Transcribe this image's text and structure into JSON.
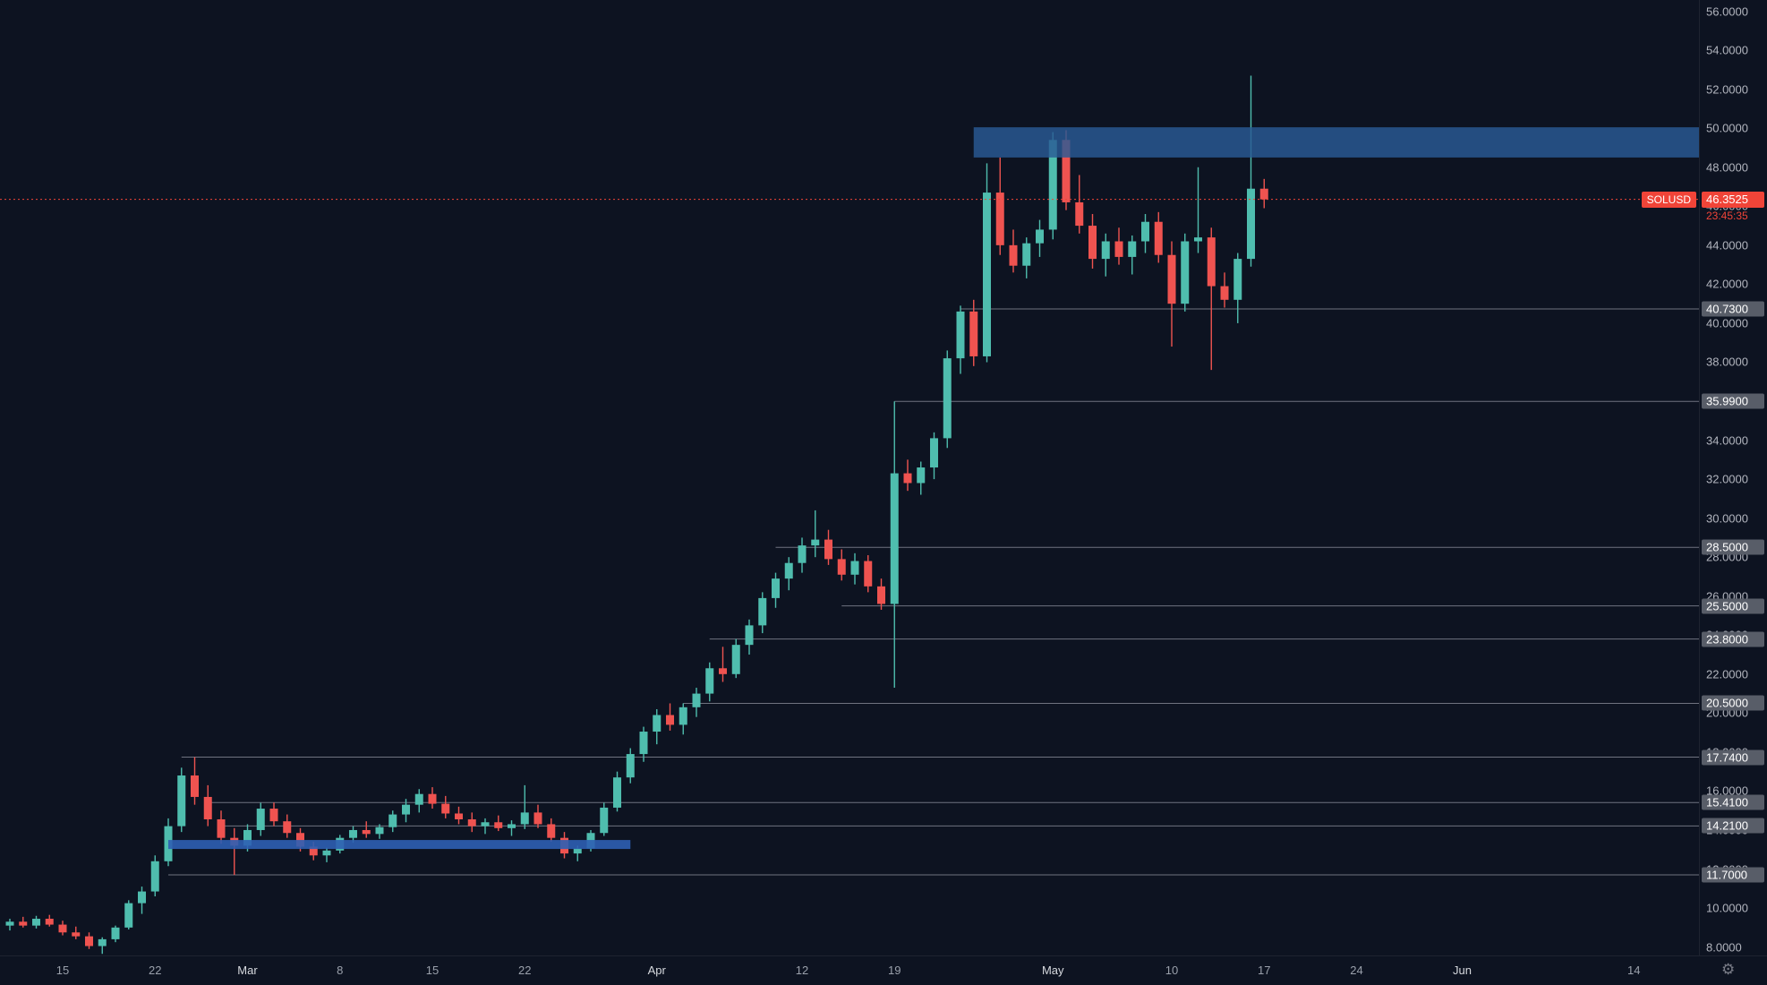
{
  "symbol": {
    "name": "SOLUSD",
    "last_price": "46.3525",
    "countdown": "23:45:35"
  },
  "colors": {
    "background": "#0d1321",
    "up": "#4fbdae",
    "down": "#ef5350",
    "level_line": "#6f7380",
    "zone_supply": "#2a5a95",
    "zone_support": "#2e5fb2",
    "accent_red": "#f04438",
    "axis_text": "#b2b5be",
    "badge_gray": "#585d68"
  },
  "chart_data": {
    "type": "candlestick",
    "symbol": "SOLUSD",
    "price_range": [
      8,
      56
    ],
    "current_price": 46.3525,
    "axis_ticks": [
      56,
      54,
      52,
      50,
      48,
      46,
      44,
      42,
      40,
      38,
      36,
      34,
      32,
      30,
      28,
      26,
      24,
      22,
      20,
      18,
      16,
      14,
      12,
      10,
      8
    ],
    "levels": [
      {
        "price": 40.73,
        "label": "40.7300",
        "from_day": 72
      },
      {
        "price": 35.99,
        "label": "35.9900",
        "from_day": 67
      },
      {
        "price": 28.5,
        "label": "28.5000",
        "from_day": 58
      },
      {
        "price": 25.5,
        "label": "25.5000",
        "from_day": 63
      },
      {
        "price": 23.8,
        "label": "23.8000",
        "from_day": 53
      },
      {
        "price": 20.5,
        "label": "20.5000",
        "from_day": 51
      },
      {
        "price": 17.74,
        "label": "17.7400",
        "from_day": 13
      },
      {
        "price": 15.41,
        "label": "15.4100",
        "from_day": 15
      },
      {
        "price": 14.21,
        "label": "14.2100",
        "from_day": 16
      },
      {
        "price": 11.7,
        "label": "11.7000",
        "from_day": 12
      }
    ],
    "zones": [
      {
        "name": "supply",
        "from_day": 73,
        "to_day": null,
        "price_top": 50.05,
        "price_bottom": 48.5
      },
      {
        "name": "support",
        "from_day": 12,
        "to_day": 47,
        "price_top": 13.49,
        "price_bottom": 13.03
      }
    ],
    "candles": [
      [
        "Feb 11",
        9.1,
        9.45,
        8.85,
        9.3
      ],
      [
        "Feb 12",
        9.3,
        9.55,
        9.0,
        9.1
      ],
      [
        "Feb 13",
        9.1,
        9.6,
        8.95,
        9.45
      ],
      [
        "Feb 14",
        9.45,
        9.65,
        9.05,
        9.15
      ],
      [
        "Feb 15",
        9.15,
        9.35,
        8.6,
        8.75
      ],
      [
        "Feb 16",
        8.75,
        9.05,
        8.4,
        8.55
      ],
      [
        "Feb 17",
        8.55,
        8.75,
        7.9,
        8.05
      ],
      [
        "Feb 18",
        8.05,
        8.5,
        7.65,
        8.4
      ],
      [
        "Feb 19",
        8.4,
        9.1,
        8.25,
        9.0
      ],
      [
        "Feb 20",
        9.0,
        10.4,
        8.9,
        10.25
      ],
      [
        "Feb 21",
        10.25,
        11.1,
        9.7,
        10.85
      ],
      [
        "Feb 22",
        10.85,
        12.7,
        10.6,
        12.4
      ],
      [
        "Feb 23",
        12.4,
        14.6,
        12.15,
        14.2
      ],
      [
        "Feb 24",
        14.2,
        17.2,
        13.9,
        16.8
      ],
      [
        "Feb 25",
        16.8,
        17.74,
        15.3,
        15.7
      ],
      [
        "Feb 26",
        15.7,
        16.3,
        14.2,
        14.55
      ],
      [
        "Feb 27",
        14.55,
        15.0,
        13.3,
        13.6
      ],
      [
        "Feb 28",
        13.6,
        14.1,
        11.7,
        13.2
      ],
      [
        "Mar 1",
        13.2,
        14.3,
        12.9,
        14.0
      ],
      [
        "Mar 2",
        14.0,
        15.4,
        13.7,
        15.1
      ],
      [
        "Mar 3",
        15.1,
        15.41,
        14.2,
        14.45
      ],
      [
        "Mar 4",
        14.45,
        14.8,
        13.6,
        13.85
      ],
      [
        "Mar 5",
        13.85,
        14.1,
        12.9,
        13.15
      ],
      [
        "Mar 6",
        13.15,
        13.4,
        12.45,
        12.7
      ],
      [
        "Mar 7",
        12.7,
        13.1,
        12.35,
        12.95
      ],
      [
        "Mar 8",
        12.95,
        13.75,
        12.8,
        13.6
      ],
      [
        "Mar 9",
        13.6,
        14.2,
        13.35,
        14.0
      ],
      [
        "Mar 10",
        14.0,
        14.45,
        13.6,
        13.8
      ],
      [
        "Mar 11",
        13.8,
        14.3,
        13.55,
        14.15
      ],
      [
        "Mar 12",
        14.15,
        15.0,
        13.9,
        14.8
      ],
      [
        "Mar 13",
        14.8,
        15.6,
        14.4,
        15.3
      ],
      [
        "Mar 14",
        15.3,
        16.1,
        14.9,
        15.85
      ],
      [
        "Mar 15",
        15.85,
        16.2,
        15.1,
        15.35
      ],
      [
        "Mar 16",
        15.35,
        15.75,
        14.6,
        14.85
      ],
      [
        "Mar 17",
        14.85,
        15.2,
        14.3,
        14.55
      ],
      [
        "Mar 18",
        14.55,
        14.9,
        13.9,
        14.2
      ],
      [
        "Mar 19",
        14.2,
        14.6,
        13.8,
        14.4
      ],
      [
        "Mar 20",
        14.4,
        14.75,
        13.95,
        14.1
      ],
      [
        "Mar 21",
        14.1,
        14.5,
        13.7,
        14.3
      ],
      [
        "Mar 22",
        14.3,
        16.3,
        14.05,
        14.9
      ],
      [
        "Mar 23",
        14.9,
        15.3,
        14.1,
        14.3
      ],
      [
        "Mar 24",
        14.3,
        14.6,
        13.4,
        13.6
      ],
      [
        "Mar 25",
        13.6,
        13.9,
        12.55,
        12.8
      ],
      [
        "Mar 26",
        12.8,
        13.2,
        12.4,
        13.05
      ],
      [
        "Mar 27",
        13.05,
        14.0,
        12.9,
        13.85
      ],
      [
        "Mar 28",
        13.85,
        15.4,
        13.7,
        15.15
      ],
      [
        "Mar 29",
        15.15,
        17.0,
        14.95,
        16.7
      ],
      [
        "Mar 30",
        16.7,
        18.2,
        16.4,
        17.9
      ],
      [
        "Mar 31",
        17.9,
        19.3,
        17.5,
        19.05
      ],
      [
        "Apr 1",
        19.05,
        20.2,
        18.4,
        19.9
      ],
      [
        "Apr 2",
        19.9,
        20.5,
        19.1,
        19.4
      ],
      [
        "Apr 3",
        19.4,
        20.5,
        18.9,
        20.3
      ],
      [
        "Apr 4",
        20.3,
        21.3,
        19.8,
        21.0
      ],
      [
        "Apr 5",
        21.0,
        22.6,
        20.6,
        22.3
      ],
      [
        "Apr 6",
        22.3,
        23.4,
        21.6,
        22.0
      ],
      [
        "Apr 7",
        22.0,
        23.8,
        21.8,
        23.5
      ],
      [
        "Apr 8",
        23.5,
        24.8,
        23.0,
        24.5
      ],
      [
        "Apr 9",
        24.5,
        26.2,
        24.1,
        25.9
      ],
      [
        "Apr 10",
        25.9,
        27.2,
        25.4,
        26.9
      ],
      [
        "Apr 11",
        26.9,
        28.0,
        26.3,
        27.7
      ],
      [
        "Apr 12",
        27.7,
        29.0,
        27.2,
        28.6
      ],
      [
        "Apr 13",
        28.6,
        30.4,
        28.0,
        28.9
      ],
      [
        "Apr 14",
        28.9,
        29.4,
        27.6,
        27.9
      ],
      [
        "Apr 15",
        27.9,
        28.4,
        26.8,
        27.1
      ],
      [
        "Apr 16",
        27.1,
        28.2,
        26.6,
        27.8
      ],
      [
        "Apr 17",
        27.8,
        28.1,
        26.2,
        26.5
      ],
      [
        "Apr 18",
        26.5,
        26.9,
        25.3,
        25.6
      ],
      [
        "Apr 19",
        25.6,
        35.99,
        21.3,
        32.3
      ],
      [
        "Apr 20",
        32.3,
        33.0,
        31.4,
        31.8
      ],
      [
        "Apr 21",
        31.8,
        32.9,
        31.2,
        32.6
      ],
      [
        "Apr 22",
        32.6,
        34.4,
        32.0,
        34.1
      ],
      [
        "Apr 23",
        34.1,
        38.6,
        33.6,
        38.2
      ],
      [
        "Apr 24",
        38.2,
        40.9,
        37.4,
        40.6
      ],
      [
        "Apr 25",
        40.6,
        41.2,
        37.8,
        38.3
      ],
      [
        "Apr 26",
        38.3,
        48.2,
        38.0,
        46.7
      ],
      [
        "Apr 27",
        46.7,
        48.5,
        43.5,
        44.0
      ],
      [
        "Apr 28",
        44.0,
        44.8,
        42.6,
        42.95
      ],
      [
        "Apr 29",
        42.95,
        44.4,
        42.3,
        44.1
      ],
      [
        "Apr 30",
        44.1,
        45.3,
        43.4,
        44.8
      ],
      [
        "May 1",
        44.8,
        49.8,
        44.3,
        49.4
      ],
      [
        "May 2",
        49.4,
        49.9,
        45.8,
        46.2
      ],
      [
        "May 3",
        46.2,
        47.6,
        44.6,
        45.0
      ],
      [
        "May 4",
        45.0,
        45.6,
        42.8,
        43.3
      ],
      [
        "May 5",
        43.3,
        44.6,
        42.4,
        44.2
      ],
      [
        "May 6",
        44.2,
        44.9,
        43.0,
        43.4
      ],
      [
        "May 7",
        43.4,
        44.5,
        42.5,
        44.2
      ],
      [
        "May 8",
        44.2,
        45.6,
        43.6,
        45.2
      ],
      [
        "May 9",
        45.2,
        45.7,
        43.1,
        43.5
      ],
      [
        "May 10",
        43.5,
        44.2,
        38.8,
        41.0
      ],
      [
        "May 11",
        41.0,
        44.6,
        40.6,
        44.2
      ],
      [
        "May 12",
        44.2,
        48.0,
        43.6,
        44.4
      ],
      [
        "May 13",
        44.4,
        44.9,
        37.6,
        41.9
      ],
      [
        "May 14",
        41.9,
        42.6,
        40.8,
        41.2
      ],
      [
        "May 15",
        41.2,
        43.6,
        40.0,
        43.3
      ],
      [
        "May 16",
        43.3,
        52.7,
        42.9,
        46.9
      ],
      [
        "May 17",
        46.9,
        47.4,
        45.9,
        46.35
      ]
    ]
  },
  "time_axis": {
    "labels": [
      {
        "day": 4,
        "text": "15",
        "major": false
      },
      {
        "day": 11,
        "text": "22",
        "major": false
      },
      {
        "day": 18,
        "text": "Mar",
        "major": true
      },
      {
        "day": 25,
        "text": "8",
        "major": false
      },
      {
        "day": 32,
        "text": "15",
        "major": false
      },
      {
        "day": 39,
        "text": "22",
        "major": false
      },
      {
        "day": 49,
        "text": "Apr",
        "major": true
      },
      {
        "day": 60,
        "text": "12",
        "major": false
      },
      {
        "day": 67,
        "text": "19",
        "major": false
      },
      {
        "day": 79,
        "text": "May",
        "major": true
      },
      {
        "day": 88,
        "text": "10",
        "major": false
      },
      {
        "day": 95,
        "text": "17",
        "major": false
      },
      {
        "day": 102,
        "text": "24",
        "major": false
      },
      {
        "day": 110,
        "text": "Jun",
        "major": true
      },
      {
        "day": 123,
        "text": "14",
        "major": false
      }
    ]
  }
}
